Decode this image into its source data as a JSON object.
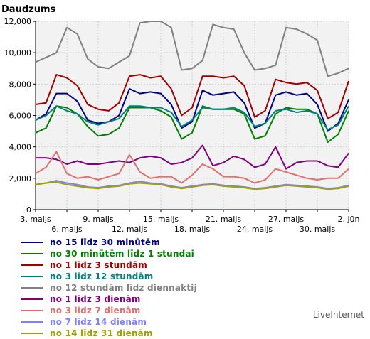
{
  "chart_data": {
    "type": "line",
    "ylabel": "Daudzums",
    "ylim": [
      0,
      12000
    ],
    "yticks": [
      0,
      2000,
      4000,
      6000,
      8000,
      10000,
      12000
    ],
    "ytick_labels": [
      "0",
      "2,000",
      "4,000",
      "6,000",
      "8,000",
      "10,000",
      "12,000"
    ],
    "x_tick_labels": [
      {
        "day": 0,
        "label": "3. maijs",
        "row": 1
      },
      {
        "day": 3,
        "label": "6. maijs",
        "row": 2
      },
      {
        "day": 6,
        "label": "9. maijs",
        "row": 1
      },
      {
        "day": 9,
        "label": "12. maijs",
        "row": 2
      },
      {
        "day": 12,
        "label": "15. maijs",
        "row": 1
      },
      {
        "day": 15,
        "label": "18. maijs",
        "row": 2
      },
      {
        "day": 18,
        "label": "21. maijs",
        "row": 1
      },
      {
        "day": 21,
        "label": "24. maijs",
        "row": 2
      },
      {
        "day": 24,
        "label": "27. maijs",
        "row": 1
      },
      {
        "day": 27,
        "label": "30. maijs",
        "row": 2
      },
      {
        "day": 30,
        "label": "2. jūn",
        "row": 1
      }
    ],
    "grid": true,
    "series": [
      {
        "name": "no 15 līdz 30 minūtēm",
        "color": "#000080",
        "values": [
          5700,
          6100,
          7400,
          7400,
          6900,
          5700,
          5500,
          5600,
          6000,
          7700,
          7400,
          7500,
          7400,
          6700,
          5200,
          5600,
          7600,
          7300,
          7400,
          7500,
          6800,
          5200,
          5500,
          7300,
          7500,
          7300,
          7400,
          6700,
          5000,
          5500,
          7000
        ]
      },
      {
        "name": "no 30 minūtēm līdz 1 stundai",
        "color": "#008000",
        "values": [
          4900,
          5200,
          6600,
          6500,
          6100,
          5300,
          4700,
          4800,
          5200,
          6500,
          6500,
          6500,
          6300,
          5900,
          4500,
          4900,
          6600,
          6400,
          6400,
          6400,
          6100,
          4500,
          4700,
          6100,
          6500,
          6400,
          6400,
          6100,
          4300,
          4800,
          6300
        ]
      },
      {
        "name": "no 1 līdz 3 stundām",
        "color": "#a00000",
        "values": [
          6700,
          6800,
          8600,
          8400,
          7900,
          6700,
          6400,
          6300,
          6800,
          8500,
          8600,
          8400,
          8500,
          7700,
          6000,
          6500,
          8500,
          8500,
          8400,
          8500,
          7900,
          5900,
          6300,
          8300,
          8100,
          8000,
          8100,
          7600,
          5800,
          6200,
          8200
        ]
      },
      {
        "name": "no 3 līdz 12 stundām",
        "color": "#008080",
        "values": [
          5700,
          6000,
          6600,
          6300,
          6100,
          5600,
          5400,
          5600,
          5800,
          6600,
          6600,
          6500,
          6500,
          6200,
          5300,
          5700,
          6500,
          6400,
          6400,
          6500,
          6200,
          5300,
          5500,
          6300,
          6400,
          6200,
          6300,
          6100,
          5100,
          5400,
          6600
        ]
      },
      {
        "name": "no 12 stundām līdz diennaktij",
        "color": "#808080",
        "values": [
          9400,
          9700,
          10000,
          11600,
          11200,
          9600,
          9100,
          9000,
          9400,
          9800,
          11900,
          12000,
          12000,
          11600,
          8900,
          9000,
          9500,
          11800,
          11600,
          11500,
          10000,
          8900,
          9000,
          9200,
          11600,
          11500,
          11200,
          10800,
          8500,
          8700,
          9000
        ]
      },
      {
        "name": "no 1 līdz 3 dienām",
        "color": "#800080",
        "values": [
          3300,
          3300,
          3200,
          2900,
          3100,
          2900,
          2900,
          3000,
          3100,
          3000,
          3300,
          3400,
          3300,
          2900,
          3000,
          3300,
          4100,
          2800,
          3000,
          3400,
          3200,
          2700,
          2900,
          4000,
          2600,
          3000,
          3100,
          3100,
          2800,
          2700,
          3600
        ]
      },
      {
        "name": "no 3 līdz 7 dienām",
        "color": "#e07070",
        "values": [
          2300,
          2700,
          3700,
          2300,
          2000,
          2100,
          1900,
          2100,
          2300,
          3500,
          2400,
          2000,
          2100,
          2100,
          1700,
          2200,
          2900,
          2600,
          2100,
          2100,
          2000,
          1700,
          1900,
          2600,
          2400,
          2200,
          2000,
          1900,
          2000,
          2000,
          2600
        ]
      },
      {
        "name": "no 7 līdz 14 dienām",
        "color": "#8080ff",
        "values": [
          1600,
          1700,
          1850,
          1700,
          1600,
          1450,
          1400,
          1500,
          1550,
          1700,
          1800,
          1700,
          1650,
          1500,
          1400,
          1500,
          1600,
          1650,
          1550,
          1500,
          1450,
          1350,
          1400,
          1500,
          1600,
          1550,
          1500,
          1450,
          1350,
          1400,
          1550
        ]
      },
      {
        "name": "no 14 līdz 31 dienām",
        "color": "#a0a000",
        "values": [
          1600,
          1700,
          1750,
          1600,
          1500,
          1400,
          1350,
          1450,
          1500,
          1650,
          1700,
          1650,
          1600,
          1450,
          1350,
          1450,
          1550,
          1600,
          1500,
          1450,
          1400,
          1300,
          1350,
          1450,
          1550,
          1500,
          1450,
          1400,
          1300,
          1350,
          1500
        ]
      }
    ]
  },
  "footer": {
    "brand": "LiveInternet"
  }
}
